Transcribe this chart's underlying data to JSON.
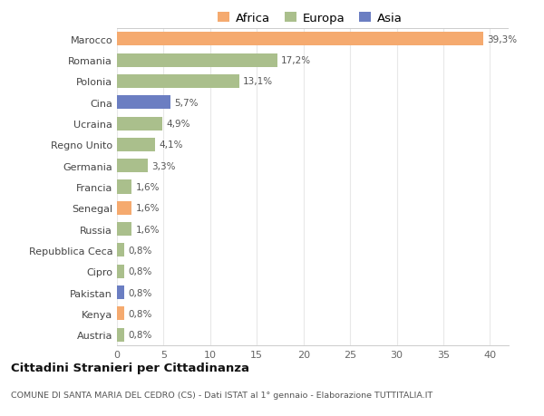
{
  "countries": [
    "Marocco",
    "Romania",
    "Polonia",
    "Cina",
    "Ucraina",
    "Regno Unito",
    "Germania",
    "Francia",
    "Senegal",
    "Russia",
    "Repubblica Ceca",
    "Cipro",
    "Pakistan",
    "Kenya",
    "Austria"
  ],
  "values": [
    39.3,
    17.2,
    13.1,
    5.7,
    4.9,
    4.1,
    3.3,
    1.6,
    1.6,
    1.6,
    0.8,
    0.8,
    0.8,
    0.8,
    0.8
  ],
  "labels": [
    "39,3%",
    "17,2%",
    "13,1%",
    "5,7%",
    "4,9%",
    "4,1%",
    "3,3%",
    "1,6%",
    "1,6%",
    "1,6%",
    "0,8%",
    "0,8%",
    "0,8%",
    "0,8%",
    "0,8%"
  ],
  "continents": [
    "Africa",
    "Europa",
    "Europa",
    "Asia",
    "Europa",
    "Europa",
    "Europa",
    "Europa",
    "Africa",
    "Europa",
    "Europa",
    "Europa",
    "Asia",
    "Africa",
    "Europa"
  ],
  "colors": {
    "Africa": "#F5AA6F",
    "Europa": "#AABF8C",
    "Asia": "#6B7EC2"
  },
  "xlim": [
    0,
    42
  ],
  "xticks": [
    0,
    5,
    10,
    15,
    20,
    25,
    30,
    35,
    40
  ],
  "title": "Cittadini Stranieri per Cittadinanza",
  "subtitle": "COMUNE DI SANTA MARIA DEL CEDRO (CS) - Dati ISTAT al 1° gennaio - Elaborazione TUTTITALIA.IT",
  "background_color": "#ffffff",
  "grid_color": "#e8e8e8",
  "bar_height": 0.65
}
